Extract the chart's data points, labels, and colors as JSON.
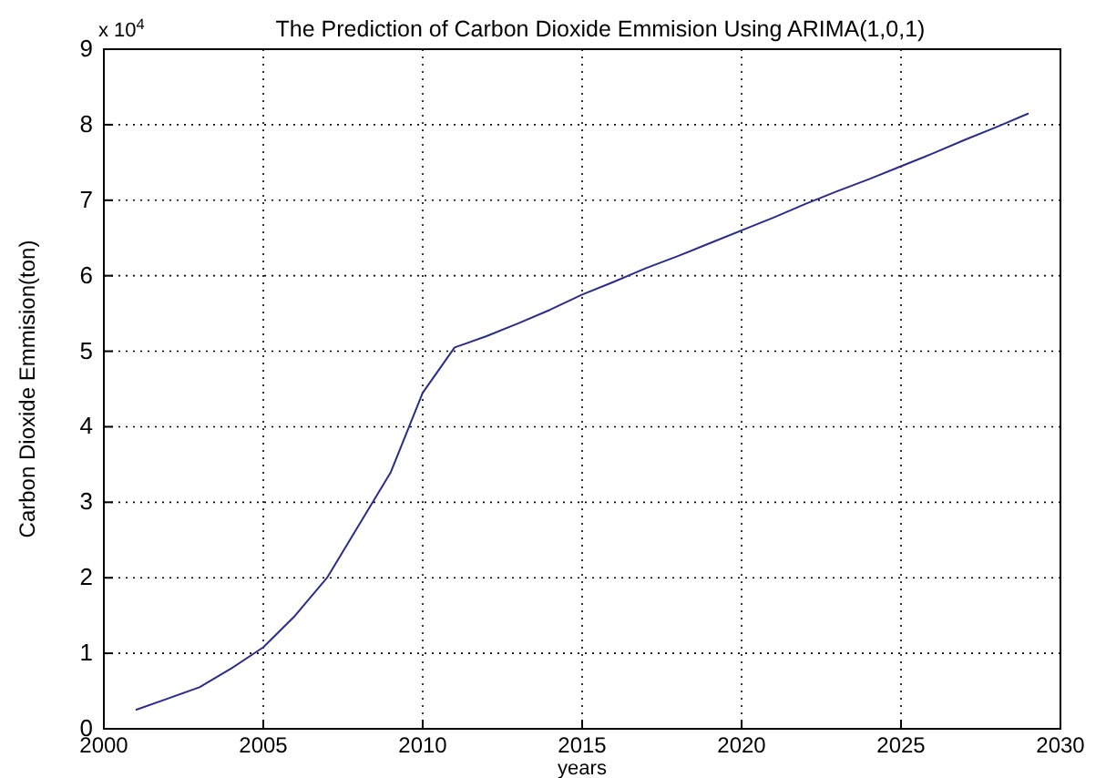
{
  "chart_data": {
    "type": "line",
    "title": "The Prediction of Carbon Dioxide Emmision Using ARIMA(1,0,1)",
    "xlabel": "years",
    "ylabel": "Carbon Dioxide Emmision(ton)",
    "annotations": [
      "x 10$^{4}$"
    ],
    "x": [
      2001,
      2002,
      2003,
      2004,
      2005,
      2006,
      2007,
      2008,
      2009,
      2010,
      2011,
      2012,
      2013,
      2014,
      2015,
      2016,
      2017,
      2018,
      2019,
      2020,
      2021,
      2022,
      2023,
      2024,
      2025,
      2026,
      2027,
      2028,
      2029
    ],
    "series": [
      {
        "color": "#2b2b8c",
        "values": [
          0.25,
          0.4,
          0.55,
          0.8,
          1.08,
          1.5,
          2.0,
          2.7,
          3.4,
          4.45,
          5.05,
          5.2,
          5.37,
          5.55,
          5.75,
          5.92,
          6.1,
          6.26,
          6.43,
          6.6,
          6.77,
          6.95,
          7.12,
          7.28,
          7.45,
          7.62,
          7.8,
          7.97,
          8.15
        ]
      }
    ],
    "xlim": [
      2000,
      2030
    ],
    "xticks": [
      2000,
      2005,
      2010,
      2015,
      2020,
      2025,
      2030
    ],
    "ylim": [
      0,
      9
    ],
    "yticks": [
      0,
      1,
      2,
      3,
      4,
      5,
      6,
      7,
      8,
      9
    ],
    "grid": true,
    "line_style": "solid",
    "marker": "none"
  }
}
